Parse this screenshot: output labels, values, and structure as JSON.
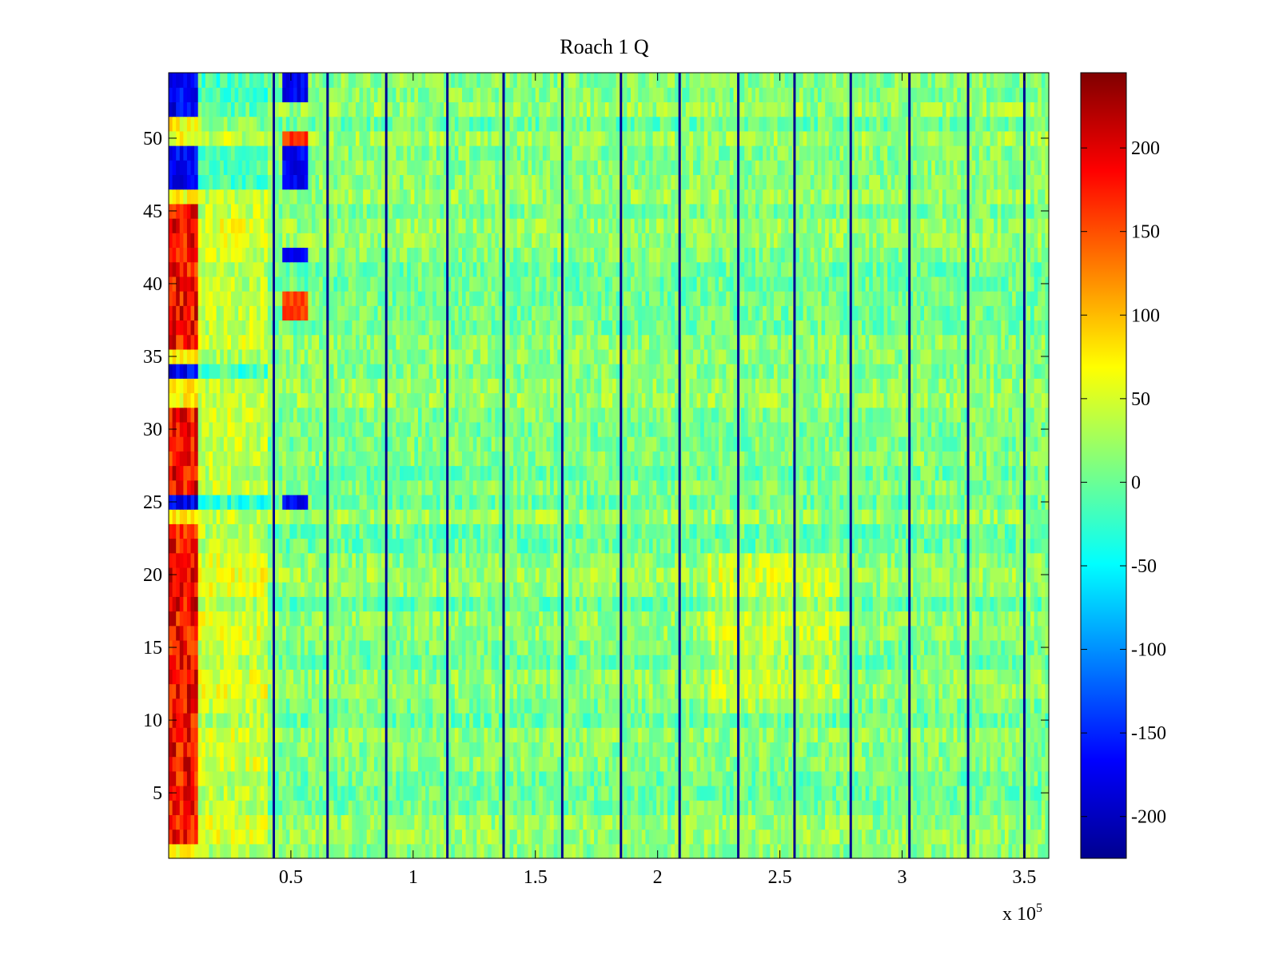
{
  "chart_data": {
    "type": "heatmap",
    "title": "Roach 1 Q",
    "xlabel": "",
    "ylabel": "",
    "x_exponent_label": "x 10",
    "x_exponent_power": "5",
    "xlim": [
      0,
      3.6
    ],
    "ylim": [
      0.5,
      54.5
    ],
    "x_ticks": [
      0.5,
      1,
      1.5,
      2,
      2.5,
      3,
      3.5
    ],
    "x_tick_labels": [
      "0.5",
      "1",
      "1.5",
      "2",
      "2.5",
      "3",
      "3.5"
    ],
    "y_ticks": [
      5,
      10,
      15,
      20,
      25,
      30,
      35,
      40,
      45,
      50
    ],
    "y_tick_labels": [
      "5",
      "10",
      "15",
      "20",
      "25",
      "30",
      "35",
      "40",
      "45",
      "50"
    ],
    "n_rows": 54,
    "colorbar": {
      "colormap": "jet",
      "clim": [
        -225,
        245
      ],
      "ticks": [
        200,
        150,
        100,
        50,
        0,
        -50,
        -100,
        -150,
        -200
      ],
      "tick_labels": [
        "200",
        "150",
        "100",
        "50",
        "0",
        "-50",
        "-100",
        "-150",
        "-200"
      ]
    },
    "stripe_lines_x": [
      0.43,
      0.65,
      0.89,
      1.14,
      1.37,
      1.61,
      1.85,
      2.09,
      2.33,
      2.56,
      2.79,
      3.03,
      3.27,
      3.5
    ],
    "approx_pattern": {
      "background_value": 10,
      "left_region_x_max": 0.12,
      "left_region_high_rows": [
        2,
        3,
        4,
        5,
        6,
        7,
        8,
        9,
        10,
        11,
        12,
        13,
        14,
        15,
        16,
        17,
        18,
        19,
        20,
        21,
        22,
        23,
        26,
        27,
        28,
        29,
        30,
        31,
        36,
        37,
        38,
        39,
        40,
        41,
        42,
        43,
        44,
        45
      ],
      "left_region_low_rows": [
        25,
        34,
        47,
        48,
        49,
        52,
        53,
        54
      ],
      "blob_x_range": [
        0.47,
        0.57
      ],
      "blob_low_rows": [
        25,
        42,
        47,
        48,
        49,
        53,
        54
      ],
      "blob_high_rows": [
        38,
        39,
        50
      ]
    }
  }
}
